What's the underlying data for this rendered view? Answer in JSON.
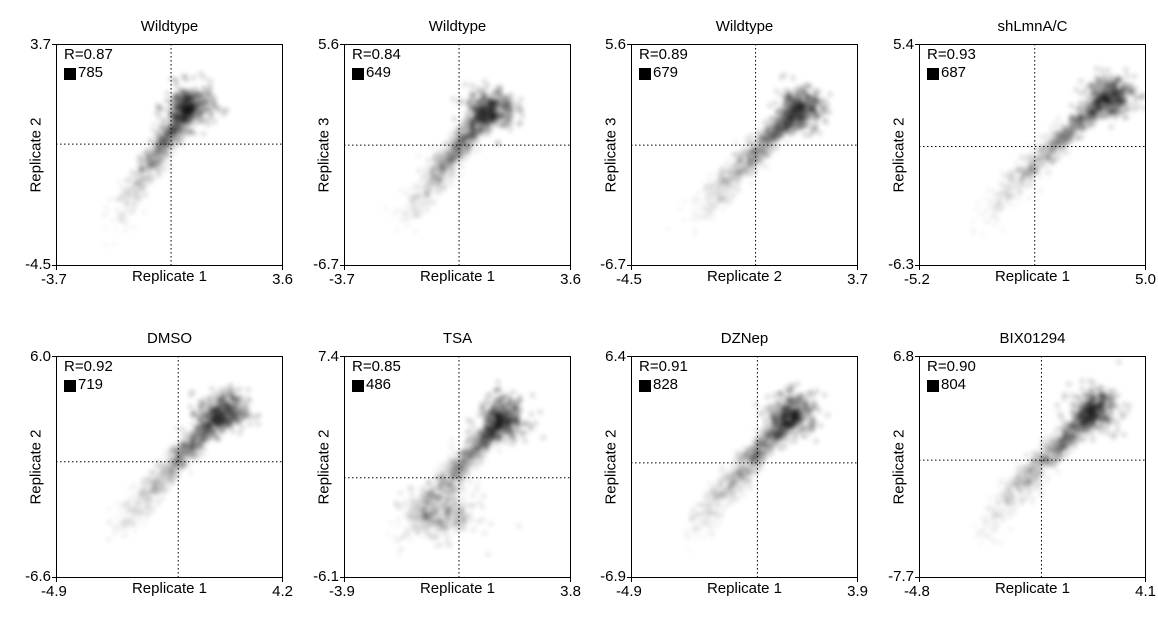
{
  "chart_data": [
    {
      "type": "heatmap",
      "title": "Wildtype",
      "xlabel": "Replicate 1",
      "ylabel": "Replicate 2",
      "xlim": [
        -3.7,
        3.6
      ],
      "ylim": [
        -4.5,
        3.7
      ],
      "x_tick_labels": [
        "-3.7",
        "3.6"
      ],
      "y_tick_labels": [
        "3.7",
        "-4.5"
      ],
      "r": "R=0.87",
      "n": "785",
      "center": [
        0.0,
        0.0
      ],
      "density_peak": [
        0.6,
        1.4
      ]
    },
    {
      "type": "heatmap",
      "title": "Wildtype",
      "xlabel": "Replicate 1",
      "ylabel": "Replicate 3",
      "xlim": [
        -3.7,
        3.6
      ],
      "ylim": [
        -6.7,
        5.6
      ],
      "x_tick_labels": [
        "-3.7",
        "3.6"
      ],
      "y_tick_labels": [
        "5.6",
        "-6.7"
      ],
      "r": "R=0.84",
      "n": "649",
      "center": [
        0.0,
        0.0
      ],
      "density_peak": [
        1.0,
        2.0
      ]
    },
    {
      "type": "heatmap",
      "title": "Wildtype",
      "xlabel": "Replicate 2",
      "ylabel": "Replicate 3",
      "xlim": [
        -4.5,
        3.7
      ],
      "ylim": [
        -6.7,
        5.6
      ],
      "x_tick_labels": [
        "-4.5",
        "3.7"
      ],
      "y_tick_labels": [
        "5.6",
        "-6.7"
      ],
      "r": "R=0.89",
      "n": "679",
      "center": [
        0.0,
        0.0
      ],
      "density_peak": [
        1.6,
        2.0
      ]
    },
    {
      "type": "heatmap",
      "title": "shLmnA/C",
      "xlabel": "Replicate 1",
      "ylabel": "Replicate 2",
      "xlim": [
        -5.2,
        5.0
      ],
      "ylim": [
        -6.3,
        5.4
      ],
      "x_tick_labels": [
        "-5.2",
        "5.0"
      ],
      "y_tick_labels": [
        "5.4",
        "-6.3"
      ],
      "r": "R=0.93",
      "n": "687",
      "center": [
        0.0,
        0.0
      ],
      "density_peak": [
        3.4,
        2.7
      ]
    },
    {
      "type": "heatmap",
      "title": "DMSO",
      "xlabel": "Replicate 1",
      "ylabel": "Replicate 2",
      "xlim": [
        -4.9,
        4.2
      ],
      "ylim": [
        -6.6,
        6.0
      ],
      "x_tick_labels": [
        "-4.9",
        "4.2"
      ],
      "y_tick_labels": [
        "6.0",
        "-6.6"
      ],
      "r": "R=0.92",
      "n": "719",
      "center": [
        0.0,
        0.0
      ],
      "density_peak": [
        1.8,
        2.8
      ]
    },
    {
      "type": "heatmap",
      "title": "TSA",
      "xlabel": "Replicate 1",
      "ylabel": "Replicate 2",
      "xlim": [
        -3.9,
        3.8
      ],
      "ylim": [
        -6.1,
        7.4
      ],
      "x_tick_labels": [
        "-3.9",
        "3.8"
      ],
      "y_tick_labels": [
        "7.4",
        "-6.1"
      ],
      "r": "R=0.85",
      "n": "486",
      "center": [
        0.0,
        0.0
      ],
      "density_peak": [
        1.5,
        3.6
      ],
      "density_peak_2": [
        -0.6,
        -2.2
      ]
    },
    {
      "type": "heatmap",
      "title": "DZNep",
      "xlabel": "Replicate 1",
      "ylabel": "Replicate 2",
      "xlim": [
        -4.9,
        3.9
      ],
      "ylim": [
        -6.9,
        6.4
      ],
      "x_tick_labels": [
        "-4.9",
        "3.9"
      ],
      "y_tick_labels": [
        "6.4",
        "-6.9"
      ],
      "r": "R=0.91",
      "n": "828",
      "center": [
        0.0,
        0.0
      ],
      "density_peak": [
        1.4,
        2.9
      ]
    },
    {
      "type": "heatmap",
      "title": "BIX01294",
      "xlabel": "Replicate 1",
      "ylabel": "Replicate 2",
      "xlim": [
        -4.8,
        4.1
      ],
      "ylim": [
        -7.7,
        6.8
      ],
      "x_tick_labels": [
        "-4.8",
        "4.1"
      ],
      "y_tick_labels": [
        "6.8",
        "-7.7"
      ],
      "r": "R=0.90",
      "n": "804",
      "center": [
        0.0,
        0.0
      ],
      "density_peak": [
        2.1,
        3.3
      ]
    }
  ]
}
